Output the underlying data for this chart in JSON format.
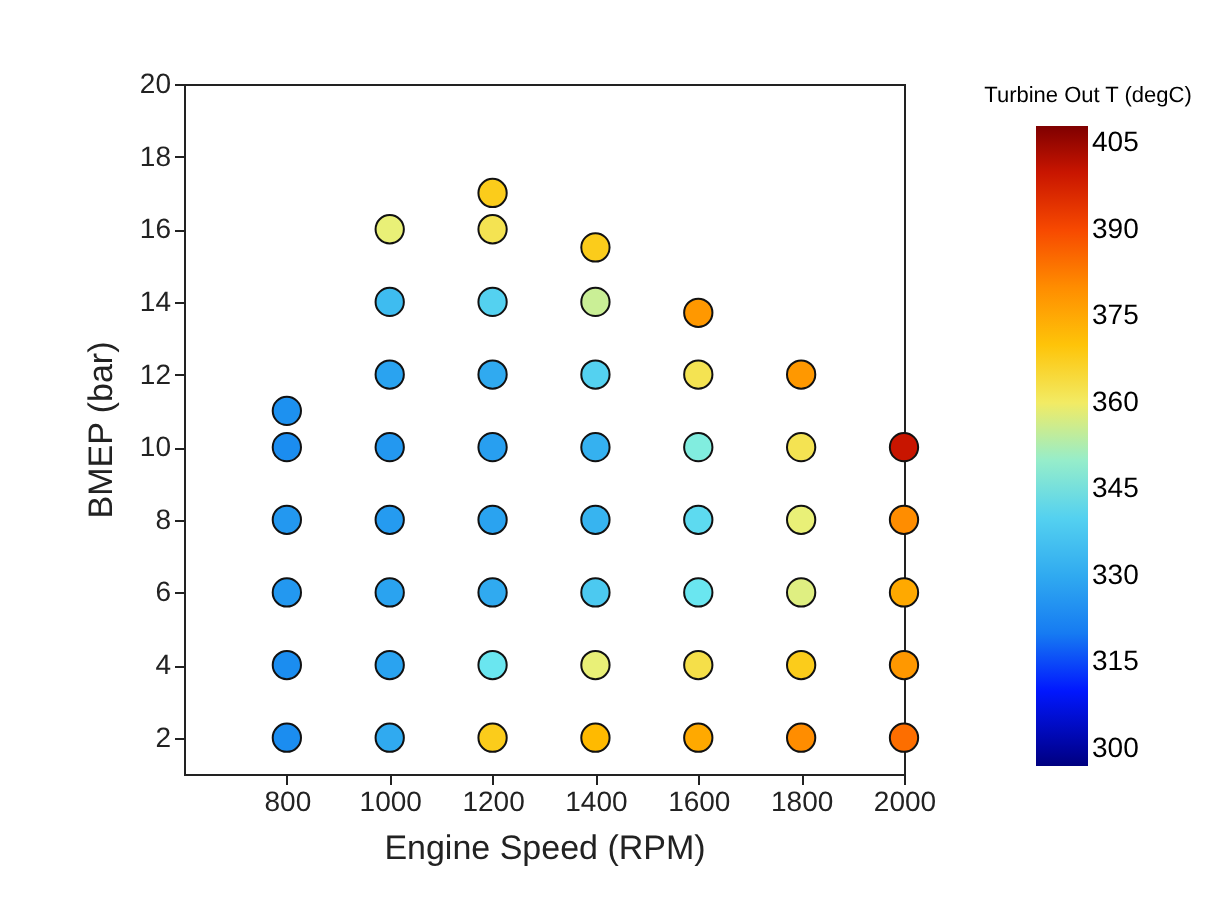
{
  "chart_data": {
    "type": "scatter",
    "xlabel": "Engine Speed (RPM)",
    "ylabel": "BMEP (bar)",
    "clabel": "Turbine Out T (degC)",
    "x": [
      800,
      800,
      800,
      800,
      800,
      800,
      1000,
      1000,
      1000,
      1000,
      1000,
      1000,
      1000,
      1000,
      1200,
      1200,
      1200,
      1200,
      1200,
      1200,
      1200,
      1200,
      1200,
      1400,
      1400,
      1400,
      1400,
      1400,
      1400,
      1400,
      1400,
      1600,
      1600,
      1600,
      1600,
      1600,
      1600,
      1600,
      1800,
      1800,
      1800,
      1800,
      1800,
      1800,
      2000,
      2000,
      2000,
      2000,
      2000
    ],
    "values": [
      2,
      4,
      6,
      8,
      10,
      11,
      2,
      4,
      6,
      8,
      10,
      12,
      14,
      16,
      2,
      4,
      6,
      8,
      10,
      12,
      14,
      16,
      17,
      2,
      4,
      6,
      8,
      10,
      12,
      14,
      15.5,
      2,
      4,
      6,
      8,
      10,
      12,
      13.7,
      2,
      4,
      6,
      8,
      10,
      12,
      2,
      4,
      6,
      8,
      10
    ],
    "cvalues": [
      322,
      322,
      325,
      325,
      322,
      323,
      330,
      328,
      328,
      326,
      325,
      328,
      335,
      358,
      368,
      345,
      330,
      328,
      327,
      330,
      340,
      362,
      368,
      372,
      358,
      338,
      333,
      332,
      340,
      355,
      368,
      375,
      363,
      345,
      342,
      348,
      362,
      378,
      380,
      368,
      357,
      358,
      362,
      378,
      385,
      378,
      375,
      380,
      400
    ],
    "xlim": [
      600,
      2000
    ],
    "xticks": [
      800,
      1000,
      1200,
      1400,
      1600,
      1800,
      2000
    ],
    "ylim": [
      1,
      20
    ],
    "yticks": [
      2,
      4,
      6,
      8,
      10,
      12,
      14,
      16,
      18,
      20
    ],
    "clim": [
      297,
      408
    ],
    "cticks": [
      300,
      315,
      330,
      345,
      360,
      375,
      390,
      405
    ],
    "marker": "circle"
  }
}
